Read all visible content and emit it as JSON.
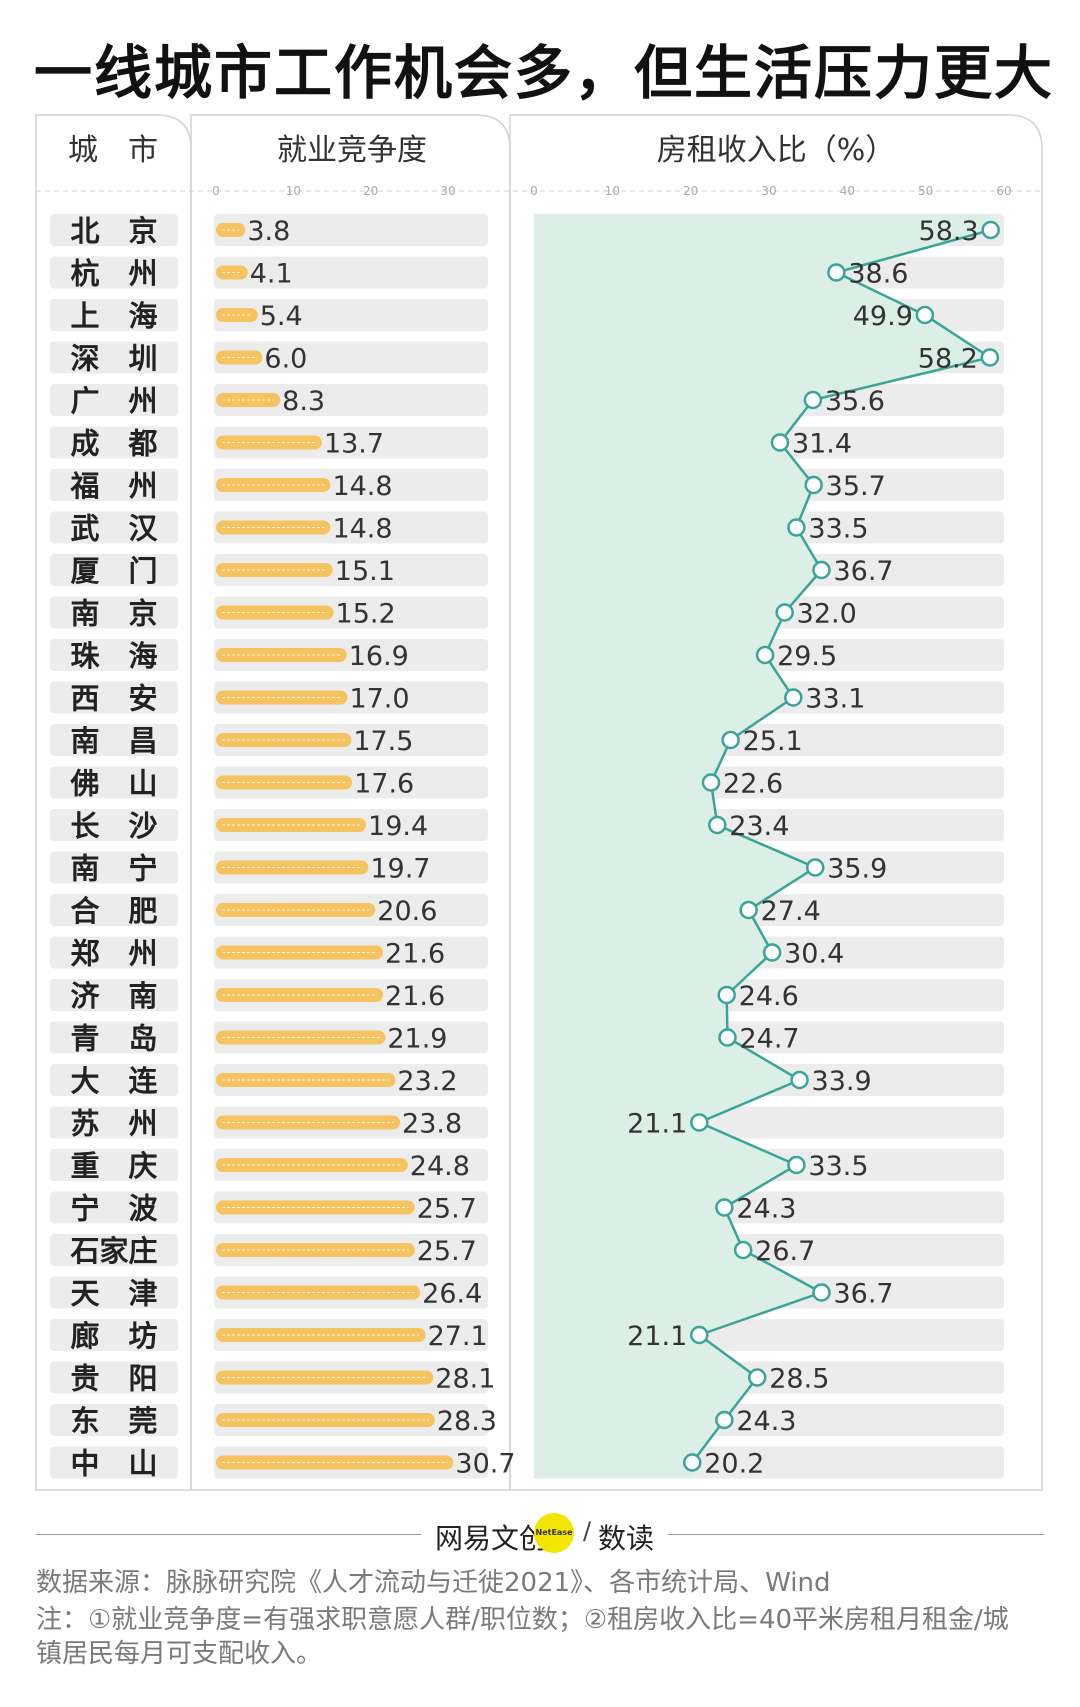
{
  "title": "一线城市工作机会多，但生活压力更大",
  "headers": {
    "city": "城　市",
    "competition": "就业竞争度",
    "rent": "房租收入比（%）"
  },
  "chart_data": [
    {
      "type": "bar",
      "title": "就业竞争度",
      "xlim": [
        0,
        30
      ],
      "ticks": [
        0,
        10,
        20,
        30
      ],
      "categories": [
        "北　京",
        "杭　州",
        "上　海",
        "深　圳",
        "广　州",
        "成　都",
        "福　州",
        "武　汉",
        "厦　门",
        "南　京",
        "珠　海",
        "西　安",
        "南　昌",
        "佛　山",
        "长　沙",
        "南　宁",
        "合　肥",
        "郑　州",
        "济　南",
        "青　岛",
        "大　连",
        "苏　州",
        "重　庆",
        "宁　波",
        "石家庄",
        "天　津",
        "廊　坊",
        "贵　阳",
        "东　莞",
        "中　山"
      ],
      "values": [
        3.8,
        4.1,
        5.4,
        6.0,
        8.3,
        13.7,
        14.8,
        14.8,
        15.1,
        15.2,
        16.9,
        17.0,
        17.5,
        17.6,
        19.4,
        19.7,
        20.6,
        21.6,
        21.6,
        21.9,
        23.2,
        23.8,
        24.8,
        25.7,
        25.7,
        26.4,
        27.1,
        28.1,
        28.3,
        30.7
      ],
      "labels": [
        "3.8",
        "4.1",
        "5.4",
        "6.0",
        "8.3",
        "13.7",
        "14.8",
        "14.8",
        "15.1",
        "15.2",
        "16.9",
        "17.0",
        "17.5",
        "17.6",
        "19.4",
        "19.7",
        "20.6",
        "21.6",
        "21.6",
        "21.9",
        "23.2",
        "23.8",
        "24.8",
        "25.7",
        "25.7",
        "26.4",
        "27.1",
        "28.1",
        "28.3",
        "30.7"
      ],
      "color": "#f5c460"
    },
    {
      "type": "line",
      "title": "房租收入比（%）",
      "xlim": [
        0,
        60
      ],
      "ticks": [
        0,
        10,
        20,
        30,
        40,
        50,
        60
      ],
      "categories": [
        "北　京",
        "杭　州",
        "上　海",
        "深　圳",
        "广　州",
        "成　都",
        "福　州",
        "武　汉",
        "厦　门",
        "南　京",
        "珠　海",
        "西　安",
        "南　昌",
        "佛　山",
        "长　沙",
        "南　宁",
        "合　肥",
        "郑　州",
        "济　南",
        "青　岛",
        "大　连",
        "苏　州",
        "重　庆",
        "宁　波",
        "石家庄",
        "天　津",
        "廊　坊",
        "贵　阳",
        "东　莞",
        "中　山"
      ],
      "values": [
        58.3,
        38.6,
        49.9,
        58.2,
        35.6,
        31.4,
        35.7,
        33.5,
        36.7,
        32.0,
        29.5,
        33.1,
        25.1,
        22.6,
        23.4,
        35.9,
        27.4,
        30.4,
        24.6,
        24.7,
        33.9,
        21.1,
        33.5,
        24.3,
        26.7,
        36.7,
        21.1,
        28.5,
        24.3,
        20.2
      ],
      "labels": [
        "58.3",
        "38.6",
        "49.9",
        "58.2",
        "35.6",
        "31.4",
        "35.7",
        "33.5",
        "36.7",
        "32.0",
        "29.5",
        "33.1",
        "25.1",
        "22.6",
        "23.4",
        "35.9",
        "27.4",
        "30.4",
        "24.6",
        "24.7",
        "33.9",
        "21.1",
        "33.5",
        "24.3",
        "26.7",
        "36.7",
        "21.1",
        "28.5",
        "24.3",
        "20.2"
      ],
      "color": "#3aa597",
      "fill_color": "#dcefe6"
    }
  ],
  "brand": {
    "name": "网易文创",
    "logo": "NetEase",
    "slash": "/",
    "sub": "数读"
  },
  "notes": {
    "source": "数据来源：脉脉研究院《人才流动与迁徙2021》、各市统计局、Wind",
    "note1": "注：①就业竞争度=有强求职意愿人群/职位数；②租房收入比=40平米房租月租金/城",
    "note2": "镇居民每月可支配收入。"
  }
}
